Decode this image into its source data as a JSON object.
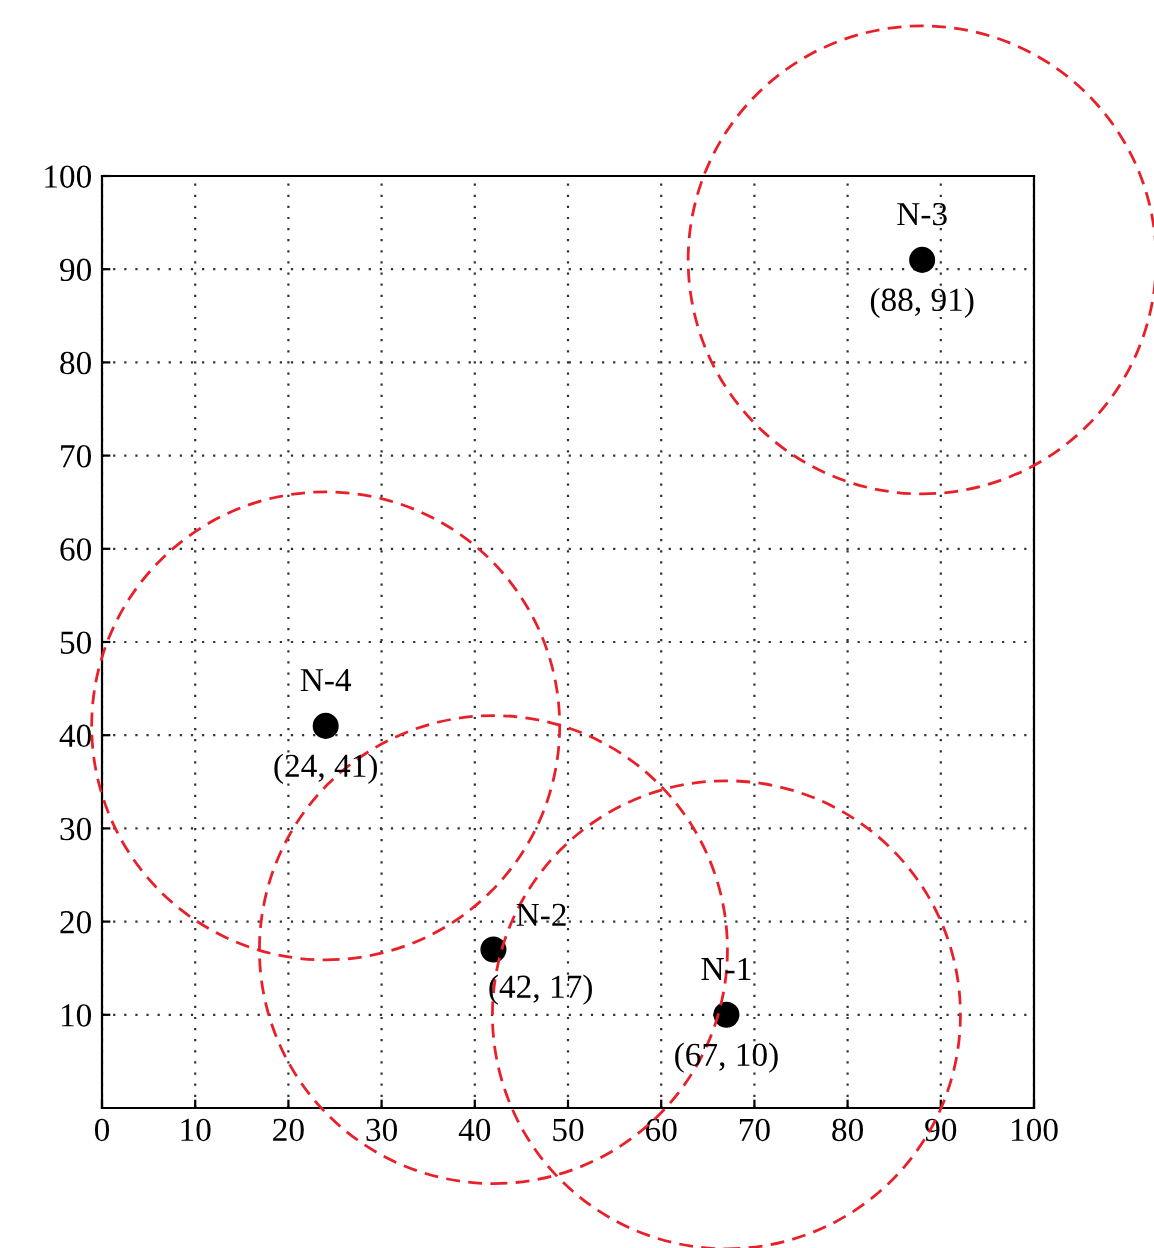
{
  "chart_data": {
    "type": "bubble",
    "xlim": [
      0,
      100
    ],
    "ylim": [
      0,
      100
    ],
    "xticks": [
      0,
      10,
      20,
      30,
      40,
      50,
      60,
      70,
      80,
      90,
      100
    ],
    "yticks": [
      10,
      20,
      30,
      40,
      50,
      60,
      70,
      80,
      90,
      100
    ],
    "grid": true,
    "marker": "circle",
    "series": [
      {
        "color": "#e8202a",
        "line_style": "dashed",
        "x": [
          67,
          42,
          88,
          24
        ],
        "values": [
          10,
          17,
          91,
          41
        ],
        "sizes": [
          1,
          1,
          1,
          1
        ]
      }
    ],
    "annotations": [
      {
        "text": "N-1",
        "x": 67,
        "y": 10
      },
      {
        "text": "(67, 10)",
        "x": 67,
        "y": 10
      },
      {
        "text": "N-2",
        "x": 42,
        "y": 17
      },
      {
        "text": "(42, 17)",
        "x": 42,
        "y": 17
      },
      {
        "text": "N-3",
        "x": 88,
        "y": 91
      },
      {
        "text": "(88, 91)",
        "x": 88,
        "y": 91
      },
      {
        "text": "N-4",
        "x": 24,
        "y": 41
      },
      {
        "text": "(24, 41)",
        "x": 24,
        "y": 41
      }
    ]
  }
}
